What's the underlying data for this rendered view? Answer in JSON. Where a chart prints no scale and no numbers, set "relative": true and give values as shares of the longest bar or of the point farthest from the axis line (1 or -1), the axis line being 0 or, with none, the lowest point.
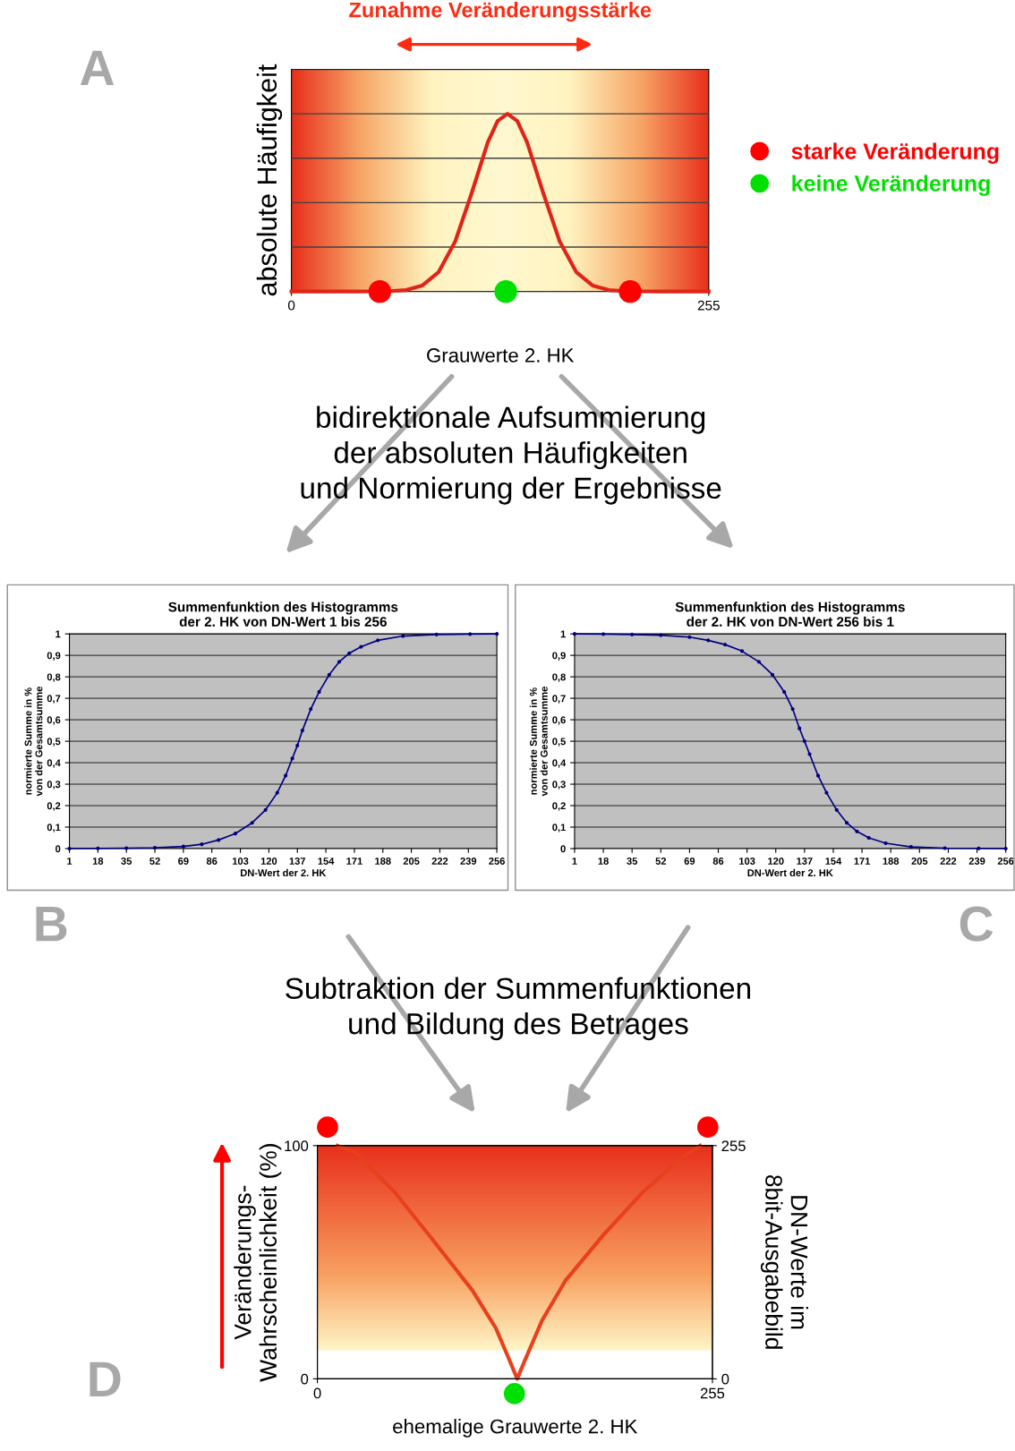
{
  "chart_data": [
    {
      "type": "line",
      "relative": true,
      "title": "Zunahme Veränderungsstärke",
      "xlabel": "Grauwerte 2. HK",
      "ylabel": "absolute Häufigkeit",
      "xlim": [
        0,
        255
      ],
      "xticks": [
        0,
        255
      ],
      "grid": "y",
      "legend": "right",
      "annotations": [
        "A",
        "bidirektionale Aufsummierung\nder absoluten Häufigkeiten\nund Normierung der Ergebnisse"
      ],
      "series": [
        {
          "color": "#e02418",
          "x": [
            0,
            40,
            60,
            70,
            80,
            90,
            100,
            110,
            120,
            126,
            132,
            138,
            144,
            154,
            164,
            174,
            184,
            194,
            204,
            225,
            255
          ],
          "values": [
            0,
            0,
            0.002,
            0.008,
            0.034,
            0.11,
            0.28,
            0.55,
            0.84,
            0.96,
            1,
            0.96,
            0.84,
            0.55,
            0.28,
            0.11,
            0.034,
            0.008,
            0.002,
            0,
            0
          ]
        },
        {
          "type": "scatter",
          "name": "starke Veränderung",
          "color": "#ff0000",
          "x": [
            54,
            207
          ],
          "values": [
            0,
            0
          ]
        },
        {
          "type": "scatter",
          "name": "keine Veränderung",
          "color": "#00e000",
          "x": [
            131
          ],
          "values": [
            0
          ]
        }
      ]
    },
    {
      "type": "line",
      "title": "Summenfunktion des Histogramms\nder 2. HK von DN-Wert 1 bis 256",
      "xlabel": "DN-Wert der 2. HK",
      "ylabel": "normierte Summe in %\nvon der Gesamtsumme",
      "xlim": [
        1,
        256
      ],
      "xticks": [
        1,
        18,
        35,
        52,
        69,
        86,
        103,
        120,
        137,
        154,
        171,
        188,
        205,
        222,
        239,
        256
      ],
      "ylim": [
        0,
        1
      ],
      "yticks": [
        0,
        {
          "value": 0.1,
          "label": "0,1"
        },
        {
          "value": 0.2,
          "label": "0,2"
        },
        {
          "value": 0.3,
          "label": "0,3"
        },
        {
          "value": 0.4,
          "label": "0,4"
        },
        {
          "value": 0.5,
          "label": "0,5"
        },
        {
          "value": 0.6,
          "label": "0,6"
        },
        {
          "value": 0.7,
          "label": "0,7"
        },
        {
          "value": 0.8,
          "label": "0,8"
        },
        {
          "value": 0.9,
          "label": "0,9"
        },
        1
      ],
      "grid": "y",
      "marker": "circle",
      "annotations": [
        "B"
      ],
      "series": [
        {
          "color": "#000080",
          "x": [
            1,
            18,
            35,
            52,
            69,
            80,
            90,
            100,
            110,
            118,
            125,
            130,
            134,
            137,
            140,
            145,
            150,
            156,
            162,
            168,
            175,
            185,
            200,
            220,
            240,
            256
          ],
          "values": [
            0,
            0.001,
            0.002,
            0.004,
            0.01,
            0.02,
            0.04,
            0.07,
            0.12,
            0.18,
            0.26,
            0.34,
            0.42,
            0.48,
            0.55,
            0.65,
            0.73,
            0.81,
            0.87,
            0.91,
            0.94,
            0.97,
            0.99,
            0.997,
            0.999,
            1
          ]
        }
      ]
    },
    {
      "type": "line",
      "title": "Summenfunktion des Histogramms\nder 2. HK von DN-Wert 256 bis 1",
      "xlabel": "DN-Wert der 2. HK",
      "ylabel": "normierte Summe in %\nvon der Gesamtsumme",
      "xlim": [
        1,
        256
      ],
      "xticks": [
        1,
        18,
        35,
        52,
        69,
        86,
        103,
        120,
        137,
        154,
        171,
        188,
        205,
        222,
        239,
        256
      ],
      "ylim": [
        0,
        1
      ],
      "yticks": [
        0,
        {
          "value": 0.1,
          "label": "0,1"
        },
        {
          "value": 0.2,
          "label": "0,2"
        },
        {
          "value": 0.3,
          "label": "0,3"
        },
        {
          "value": 0.4,
          "label": "0,4"
        },
        {
          "value": 0.5,
          "label": "0,5"
        },
        {
          "value": 0.6,
          "label": "0,6"
        },
        {
          "value": 0.7,
          "label": "0,7"
        },
        {
          "value": 0.8,
          "label": "0,8"
        },
        {
          "value": 0.9,
          "label": "0,9"
        },
        1
      ],
      "grid": "y",
      "marker": "circle",
      "annotations": [
        "C"
      ],
      "series": [
        {
          "color": "#000080",
          "x": [
            1,
            18,
            35,
            52,
            69,
            80,
            90,
            100,
            110,
            118,
            125,
            130,
            134,
            137,
            140,
            145,
            150,
            156,
            162,
            168,
            175,
            185,
            200,
            220,
            240,
            256
          ],
          "values": [
            1,
            0.999,
            0.997,
            0.994,
            0.985,
            0.97,
            0.95,
            0.92,
            0.87,
            0.81,
            0.73,
            0.65,
            0.56,
            0.5,
            0.44,
            0.34,
            0.26,
            0.18,
            0.12,
            0.08,
            0.05,
            0.025,
            0.008,
            0.002,
            0.001,
            0
          ]
        }
      ]
    },
    {
      "type": "line",
      "xlabel": "ehemalige Grauwerte 2. HK",
      "ylabel": "Veränderungs-\nWahrscheinlichkeit (%)",
      "y2label": "DN-Werte im\n8bit-Ausgabebild",
      "xlim": [
        0,
        255
      ],
      "xticks": [
        0,
        255
      ],
      "ylim": [
        0,
        100
      ],
      "yticks": [
        0,
        100
      ],
      "y2lim": [
        0,
        255
      ],
      "y2ticks": [
        0,
        255
      ],
      "annotations": [
        "D",
        "Subtraktion der Summenfunktionen\nund Bildung des Betrages"
      ],
      "series": [
        {
          "color": "#e8401c",
          "x": [
            13,
            25,
            35,
            50,
            74,
            100,
            115,
            124,
            129,
            134,
            145,
            160,
            185,
            210,
            230,
            240,
            247
          ],
          "values": [
            100,
            97,
            90,
            80,
            60,
            38,
            22,
            8,
            0,
            8,
            25,
            42,
            62,
            80,
            92,
            97,
            100
          ]
        }
      ]
    }
  ]
}
